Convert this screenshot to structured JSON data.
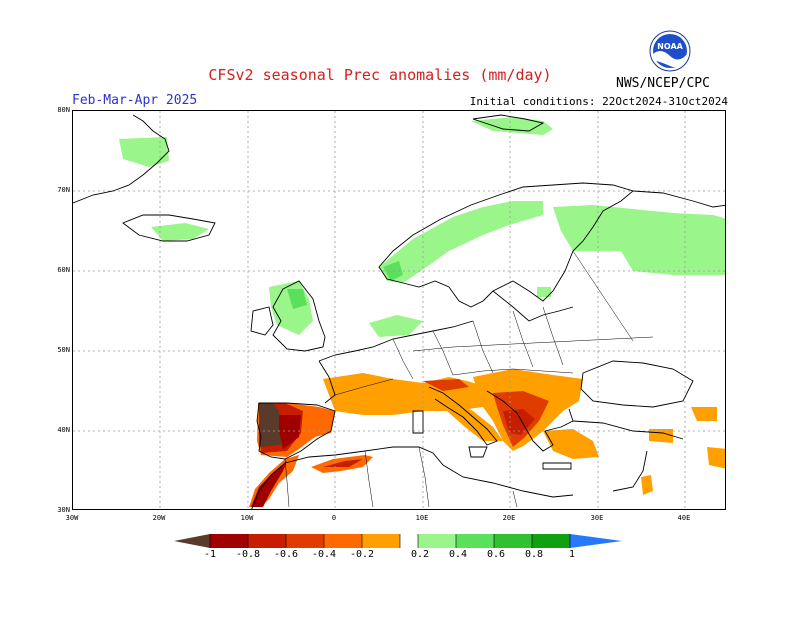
{
  "header": {
    "title": "CFSv2 seasonal Prec anomalies (mm/day)",
    "season": "Feb-Mar-Apr 2025",
    "initial_conditions": "Initial conditions: 22Oct2024-31Oct2024",
    "agency": "NWS/NCEP/CPC",
    "logo_text": "NOAA"
  },
  "map": {
    "lat_labels": [
      "80N",
      "70N",
      "60N",
      "50N",
      "40N",
      "30N"
    ],
    "lon_labels": [
      "30W",
      "20W",
      "10W",
      "0",
      "10E",
      "20E",
      "30E",
      "40E"
    ],
    "regions": [
      {
        "name": "Iberian Peninsula",
        "category": "< -1",
        "level": -1.1
      },
      {
        "name": "Morocco",
        "category": "-1 to -0.8",
        "level": -0.9
      },
      {
        "name": "Southern France",
        "category": "-0.4 to -0.2",
        "level": -0.3
      },
      {
        "name": "Italy",
        "category": "-0.4 to -0.2",
        "level": -0.3
      },
      {
        "name": "Balkans",
        "category": "-0.6 to -0.4",
        "level": -0.5
      },
      {
        "name": "Greece",
        "category": "-0.6 to -0.4",
        "level": -0.5
      },
      {
        "name": "Turkey",
        "category": "-0.4 to -0.2",
        "level": -0.3
      },
      {
        "name": "Scandinavia",
        "category": "0.2 to 0.4",
        "level": 0.3
      },
      {
        "name": "Western Norway",
        "category": "0.4 to 0.6",
        "level": 0.5
      },
      {
        "name": "Northwest Russia",
        "category": "0.2 to 0.4",
        "level": 0.3
      },
      {
        "name": "Scotland",
        "category": "0.2 to 0.6",
        "level": 0.4
      },
      {
        "name": "Iceland",
        "category": "0.2 to 0.4",
        "level": 0.3
      },
      {
        "name": "Svalbard",
        "category": "0.2 to 0.4",
        "level": 0.3
      },
      {
        "name": "Greenland",
        "category": "0.2 to 0.4",
        "level": 0.3
      }
    ]
  },
  "colorbar": {
    "labels": [
      "-1",
      "-0.8",
      "-0.6",
      "-0.4",
      "-0.2",
      "0.2",
      "0.4",
      "0.6",
      "0.8",
      "1"
    ],
    "colors": [
      "#5a3a2a",
      "#a00000",
      "#c81e00",
      "#e03c00",
      "#ff6a00",
      "#ffa000",
      "#ffffff",
      "#9af58a",
      "#5ae05a",
      "#30c030",
      "#10a010",
      "#2878ff"
    ]
  },
  "colors": {
    "title": "#d42020",
    "season": "#3030d0",
    "grid": "#999999"
  }
}
